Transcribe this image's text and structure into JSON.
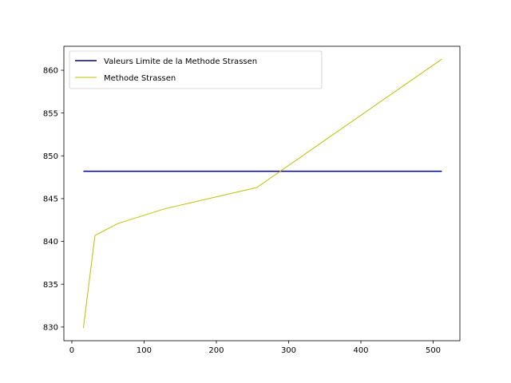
{
  "chart_data": {
    "type": "line",
    "title": "",
    "xlabel": "",
    "ylabel": "",
    "xlim": [
      -11,
      537
    ],
    "ylim": [
      828.4,
      862.8
    ],
    "xticks": [
      0,
      100,
      200,
      300,
      400,
      500
    ],
    "yticks": [
      830,
      835,
      840,
      845,
      850,
      855,
      860
    ],
    "grid": false,
    "legend_position": "top-left",
    "series": [
      {
        "name": "Valeurs Limite de la Methode Strassen",
        "color": "#00007f",
        "points": [
          [
            16,
            848.2
          ],
          [
            512,
            848.2
          ]
        ]
      },
      {
        "name": "Methode Strassen",
        "color": "#bfbf00",
        "points": [
          [
            16,
            829.9
          ],
          [
            32,
            840.7
          ],
          [
            64,
            842.1
          ],
          [
            128,
            843.8
          ],
          [
            256,
            846.3
          ],
          [
            512,
            861.3
          ]
        ]
      }
    ]
  }
}
